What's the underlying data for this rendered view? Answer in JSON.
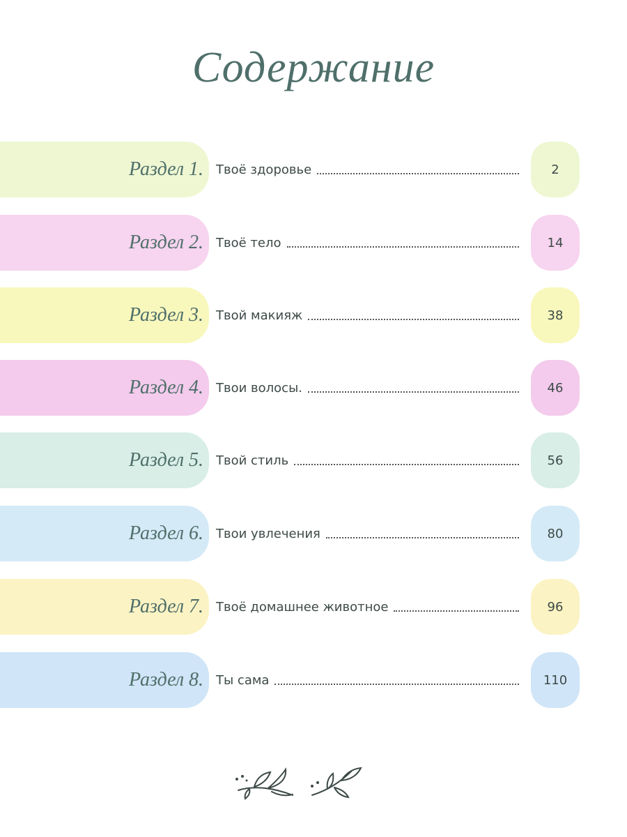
{
  "title": "Содержание",
  "entries": [
    {
      "section": "Раздел 1.",
      "title": "Твоё здоровье",
      "page": "2"
    },
    {
      "section": "Раздел 2.",
      "title": "Твоё тело",
      "page": "14"
    },
    {
      "section": "Раздел 3.",
      "title": "Твой макияж",
      "page": "38"
    },
    {
      "section": "Раздел 4.",
      "title": "Твои волосы.",
      "page": "46"
    },
    {
      "section": "Раздел 5.",
      "title": "Твой стиль",
      "page": "56"
    },
    {
      "section": "Раздел 6.",
      "title": "Твои увлечения",
      "page": "80"
    },
    {
      "section": "Раздел 7.",
      "title": "Твоё домашнее животное",
      "page": "96"
    },
    {
      "section": "Раздел 8.",
      "title": "Ты сама",
      "page": "110"
    }
  ]
}
